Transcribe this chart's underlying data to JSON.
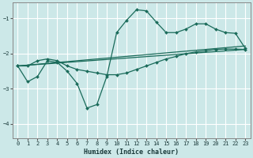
{
  "xlabel": "Humidex (Indice chaleur)",
  "background_color": "#cce8e8",
  "grid_color": "#ffffff",
  "line_color": "#1a6b5a",
  "x_ticks": [
    0,
    1,
    2,
    3,
    4,
    5,
    6,
    7,
    8,
    9,
    10,
    11,
    12,
    13,
    14,
    15,
    16,
    17,
    18,
    19,
    20,
    21,
    22,
    23
  ],
  "ylim": [
    -4.4,
    -0.55
  ],
  "xlim": [
    -0.5,
    23.5
  ],
  "yticks": [
    -4,
    -3,
    -2,
    -1
  ],
  "series_curvy_x": [
    0,
    1,
    2,
    3,
    4,
    5,
    6,
    7,
    8,
    9,
    10,
    11,
    12,
    13,
    14,
    15,
    16,
    17,
    18,
    19,
    20,
    21,
    22,
    23
  ],
  "series_curvy_y": [
    -2.35,
    -2.8,
    -2.65,
    -2.2,
    -2.25,
    -2.5,
    -2.85,
    -3.55,
    -3.45,
    -2.65,
    -1.4,
    -1.05,
    -0.75,
    -0.78,
    -1.1,
    -1.4,
    -1.4,
    -1.3,
    -1.15,
    -1.15,
    -1.3,
    -1.4,
    -1.42,
    -1.85
  ],
  "series_smooth_x": [
    0,
    1,
    2,
    3,
    4,
    5,
    6,
    7,
    8,
    9,
    10,
    11,
    12,
    13,
    14,
    15,
    16,
    17,
    18,
    19,
    20,
    21,
    22,
    23
  ],
  "series_smooth_y": [
    -2.35,
    -2.35,
    -2.2,
    -2.15,
    -2.2,
    -2.35,
    -2.45,
    -2.5,
    -2.55,
    -2.6,
    -2.6,
    -2.55,
    -2.45,
    -2.35,
    -2.25,
    -2.15,
    -2.08,
    -2.0,
    -1.95,
    -1.92,
    -1.88,
    -1.87,
    -1.87,
    -1.88
  ],
  "series_line1_x": [
    0,
    23
  ],
  "series_line1_y": [
    -2.35,
    -1.88
  ],
  "series_line2_x": [
    0,
    23
  ],
  "series_line2_y": [
    -2.35,
    -1.78
  ]
}
